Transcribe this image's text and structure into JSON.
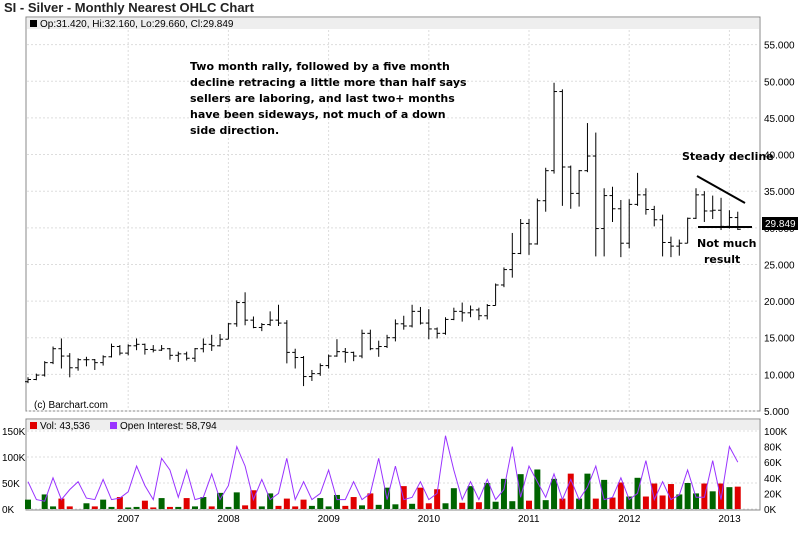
{
  "title": "SI - Silver - Monthly Nearest OHLC Chart",
  "ohlc_label": "Op:31.420, Hi:32.160, Lo:29.660, Cl:29.849",
  "last_price_label": "29.849",
  "credit": "(c) Barchart.com",
  "annotations": {
    "main_note": [
      "Two month rally, followed by a five month",
      "decline retracing a little more than half says",
      "sellers are laboring, and last two+ months",
      "have been sideways, not much of a down",
      "side direction."
    ],
    "steady_decline": "Steady decline",
    "not_much": [
      "Not much",
      "result"
    ]
  },
  "volume_legend": {
    "vol": "Vol: 43,536",
    "oi": "Open Interest: 58,794"
  },
  "colors": {
    "up_volume": "#006400",
    "down_volume": "#e00000",
    "open_interest": "#9933ff",
    "price_bar": "#000000",
    "header_band": "#eeeeee"
  },
  "chart_data": [
    {
      "type": "ohlc",
      "title": "SI - Silver - Monthly Nearest OHLC Chart",
      "ylim": [
        5,
        57
      ],
      "y_ticks": [
        "5.000",
        "10.000",
        "15.000",
        "20.000",
        "25.000",
        "30.000",
        "35.000",
        "40.000",
        "45.000",
        "50.000",
        "55.000"
      ],
      "x_ticks": [
        "2007",
        "2008",
        "2009",
        "2010",
        "2011",
        "2012",
        "2013"
      ],
      "x_start": "2006-01",
      "ohlc": [
        [
          9.0,
          9.6,
          8.8,
          9.3
        ],
        [
          9.3,
          10.1,
          9.2,
          9.9
        ],
        [
          9.9,
          11.8,
          9.7,
          11.6
        ],
        [
          11.6,
          13.8,
          11.4,
          13.5
        ],
        [
          13.5,
          14.9,
          10.8,
          12.5
        ],
        [
          12.5,
          12.9,
          9.6,
          10.9
        ],
        [
          10.9,
          12.2,
          10.5,
          12.0
        ],
        [
          12.0,
          12.4,
          11.1,
          12.0
        ],
        [
          12.0,
          12.1,
          10.6,
          11.6
        ],
        [
          11.6,
          12.6,
          11.2,
          12.4
        ],
        [
          12.4,
          14.2,
          12.3,
          13.8
        ],
        [
          13.8,
          14.0,
          12.6,
          12.9
        ],
        [
          12.9,
          14.1,
          12.6,
          13.9
        ],
        [
          13.9,
          14.9,
          13.3,
          14.1
        ],
        [
          14.1,
          14.2,
          12.7,
          13.4
        ],
        [
          13.4,
          14.0,
          13.0,
          13.3
        ],
        [
          13.3,
          14.0,
          13.2,
          13.5
        ],
        [
          13.5,
          13.6,
          12.0,
          12.6
        ],
        [
          12.6,
          13.1,
          11.7,
          12.8
        ],
        [
          12.8,
          13.1,
          11.9,
          12.2
        ],
        [
          12.2,
          13.6,
          11.7,
          13.5
        ],
        [
          13.5,
          14.9,
          13.0,
          14.1
        ],
        [
          14.1,
          15.4,
          13.2,
          13.9
        ],
        [
          13.9,
          15.5,
          13.8,
          14.8
        ],
        [
          14.8,
          17.0,
          14.8,
          16.9
        ],
        [
          16.9,
          20.1,
          16.5,
          19.8
        ],
        [
          19.8,
          21.2,
          16.7,
          17.4
        ],
        [
          17.4,
          17.9,
          16.3,
          16.4
        ],
        [
          16.4,
          17.0,
          15.9,
          16.8
        ],
        [
          16.8,
          18.6,
          16.6,
          17.4
        ],
        [
          17.4,
          19.5,
          16.6,
          17.0
        ],
        [
          17.0,
          17.4,
          11.5,
          13.0
        ],
        [
          13.0,
          13.5,
          10.8,
          12.3
        ],
        [
          12.3,
          12.5,
          8.4,
          9.7
        ],
        [
          9.7,
          10.6,
          9.1,
          10.1
        ],
        [
          10.1,
          11.5,
          9.8,
          11.2
        ],
        [
          11.2,
          12.7,
          10.8,
          12.5
        ],
        [
          12.5,
          14.8,
          12.4,
          13.1
        ],
        [
          13.1,
          13.6,
          11.6,
          13.0
        ],
        [
          13.0,
          13.1,
          11.8,
          12.5
        ],
        [
          12.5,
          16.1,
          12.2,
          15.6
        ],
        [
          15.6,
          16.1,
          13.3,
          13.5
        ],
        [
          13.5,
          14.6,
          12.4,
          13.8
        ],
        [
          13.8,
          15.4,
          13.6,
          15.0
        ],
        [
          15.0,
          17.5,
          14.5,
          16.9
        ],
        [
          16.9,
          18.0,
          16.1,
          16.6
        ],
        [
          16.6,
          19.5,
          16.4,
          18.6
        ],
        [
          18.6,
          19.2,
          16.8,
          17.0
        ],
        [
          17.0,
          18.9,
          14.8,
          16.2
        ],
        [
          16.2,
          16.4,
          14.9,
          15.6
        ],
        [
          15.6,
          17.8,
          15.4,
          17.5
        ],
        [
          17.5,
          19.1,
          17.4,
          18.6
        ],
        [
          18.6,
          19.8,
          17.2,
          18.4
        ],
        [
          18.4,
          19.4,
          17.8,
          18.8
        ],
        [
          18.8,
          19.1,
          17.4,
          18.0
        ],
        [
          18.0,
          19.6,
          17.5,
          19.4
        ],
        [
          19.4,
          22.4,
          19.4,
          22.2
        ],
        [
          22.2,
          24.6,
          21.9,
          24.3
        ],
        [
          24.3,
          29.3,
          23.2,
          26.5
        ],
        [
          26.5,
          31.2,
          26.4,
          30.6
        ],
        [
          30.6,
          31.2,
          26.3,
          27.8
        ],
        [
          27.8,
          34.0,
          27.7,
          33.7
        ],
        [
          33.7,
          38.2,
          32.2,
          37.8
        ],
        [
          37.8,
          49.8,
          37.4,
          48.6
        ],
        [
          48.6,
          48.9,
          33.0,
          38.3
        ],
        [
          38.3,
          38.5,
          32.6,
          34.7
        ],
        [
          34.7,
          37.9,
          32.9,
          37.8
        ],
        [
          37.8,
          44.3,
          37.6,
          39.8
        ],
        [
          39.8,
          43.0,
          26.1,
          29.9
        ],
        [
          29.9,
          35.4,
          26.1,
          34.4
        ],
        [
          34.4,
          35.6,
          30.8,
          32.6
        ],
        [
          32.6,
          33.8,
          26.0,
          27.9
        ],
        [
          27.9,
          33.9,
          27.2,
          33.2
        ],
        [
          33.2,
          37.5,
          33.0,
          34.5
        ],
        [
          34.5,
          35.4,
          31.8,
          32.5
        ],
        [
          32.5,
          33.0,
          30.2,
          31.1
        ],
        [
          31.1,
          31.8,
          26.1,
          28.0
        ],
        [
          28.0,
          28.8,
          26.0,
          27.5
        ],
        [
          27.5,
          28.4,
          26.2,
          27.9
        ],
        [
          27.9,
          31.4,
          27.9,
          31.3
        ],
        [
          31.3,
          35.4,
          31.2,
          34.5
        ],
        [
          34.5,
          35.0,
          30.8,
          32.3
        ],
        [
          32.3,
          34.4,
          31.2,
          32.4
        ],
        [
          32.4,
          34.1,
          29.7,
          30.2
        ],
        [
          30.2,
          32.4,
          29.9,
          31.4
        ],
        [
          31.4,
          32.2,
          29.7,
          29.8
        ]
      ]
    },
    {
      "type": "bar",
      "title": "",
      "ylim": [
        0,
        150000
      ],
      "y_ticks_left": [
        "0K",
        "50K",
        "100K",
        "150K"
      ],
      "y_ticks_right": [
        "0K",
        "20K",
        "40K",
        "60K",
        "80K",
        "100K"
      ],
      "series": [
        {
          "name": "Vol",
          "values": [
            18000,
            0,
            28000,
            5000,
            20000,
            5000,
            0,
            11000,
            5000,
            18000,
            4000,
            23000,
            3000,
            4000,
            16000,
            3000,
            21000,
            4000,
            4000,
            21000,
            5000,
            23000,
            5000,
            31000,
            4000,
            32000,
            7000,
            36000,
            5000,
            30000,
            6000,
            20000,
            5000,
            18000,
            6000,
            21000,
            5000,
            27000,
            6000,
            23000,
            7000,
            30000,
            8000,
            41000,
            9000,
            44000,
            10000,
            41000,
            11000,
            38000,
            11000,
            40000,
            12000,
            44000,
            13000,
            50000,
            14000,
            58000,
            15000,
            67000,
            16000,
            76000,
            17000,
            58000,
            20000,
            68000,
            20000,
            68000,
            20000,
            56000,
            22000,
            51000,
            24000,
            60000,
            24000,
            49000,
            26000,
            48000,
            28000,
            50000,
            30000,
            49000,
            34000,
            49000,
            42000,
            43000
          ]
        },
        {
          "name": "Open Interest",
          "values": [
            35,
            12,
            10,
            40,
            12,
            25,
            35,
            14,
            12,
            38,
            12,
            14,
            22,
            55,
            30,
            12,
            65,
            50,
            15,
            50,
            12,
            15,
            45,
            12,
            30,
            80,
            55,
            12,
            38,
            12,
            20,
            65,
            12,
            35,
            12,
            20,
            50,
            12,
            12,
            35,
            12,
            20,
            65,
            12,
            55,
            12,
            15,
            35,
            12,
            20,
            94,
            50,
            12,
            35,
            12,
            38,
            12,
            25,
            80,
            15,
            55,
            35,
            15,
            45,
            12,
            38,
            12,
            28,
            55,
            12,
            15,
            40,
            12,
            20,
            62,
            12,
            35,
            12,
            18,
            50,
            15,
            15,
            62,
            12,
            80,
            60
          ]
        }
      ]
    }
  ]
}
